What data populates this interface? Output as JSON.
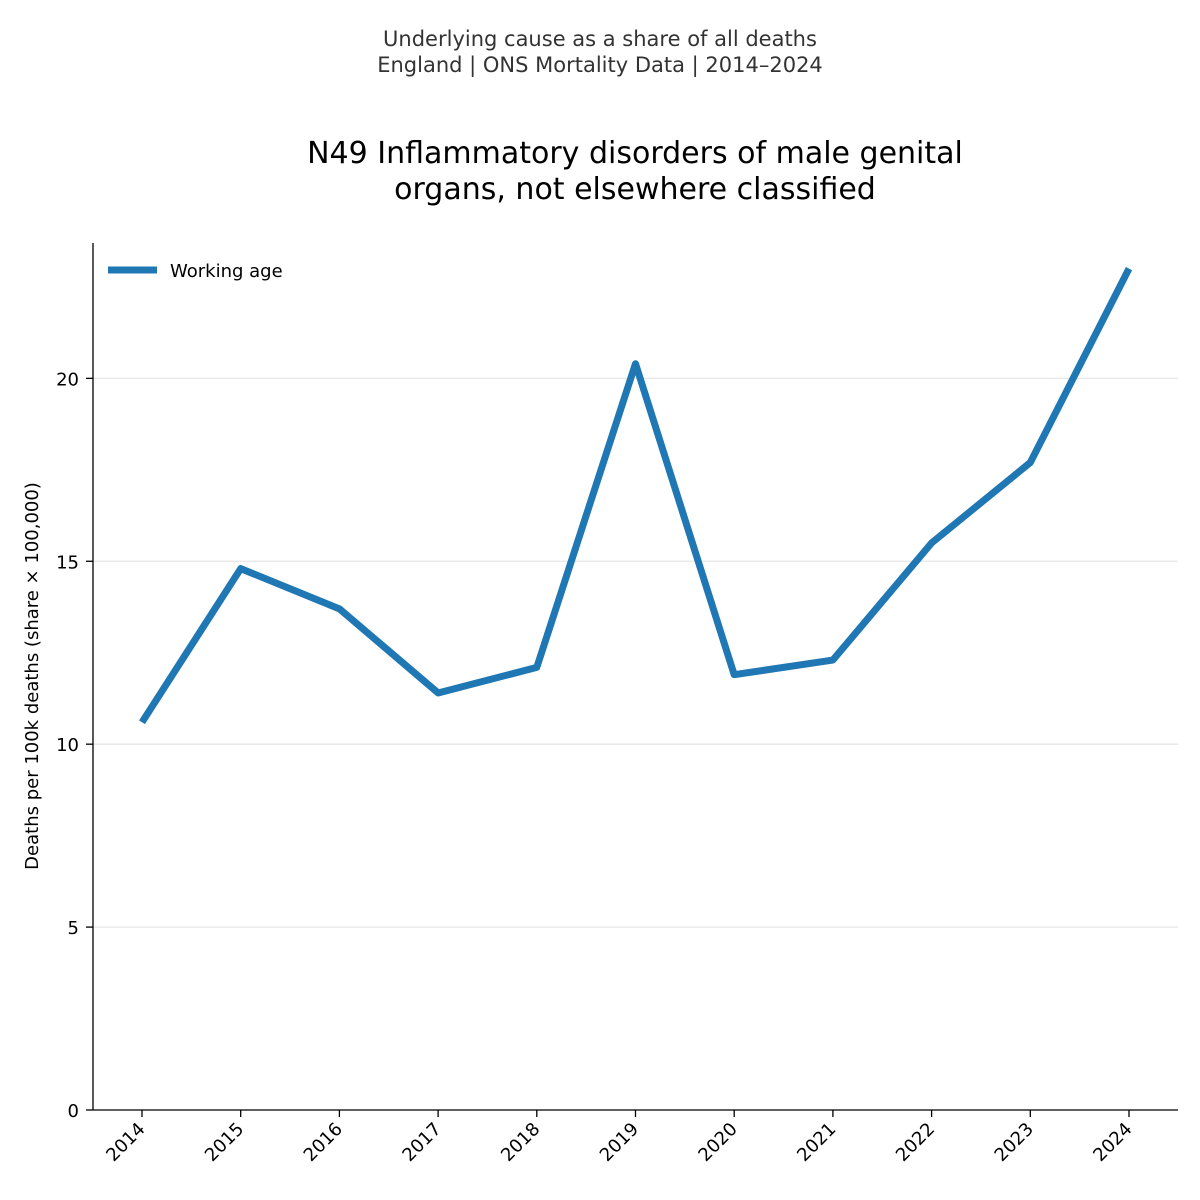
{
  "header": {
    "subtitle_line1": "Underlying cause as a share of all deaths",
    "subtitle_line2": "England | ONS Mortality Data | 2014–2024"
  },
  "chart_data": {
    "type": "line",
    "title_line1": "N49 Inflammatory disorders of male genital",
    "title_line2": "organs, not elsewhere classified",
    "xlabel": "",
    "ylabel": "Deaths per 100k deaths (share × 100,000)",
    "categories": [
      "2014",
      "2015",
      "2016",
      "2017",
      "2018",
      "2019",
      "2020",
      "2021",
      "2022",
      "2023",
      "2024"
    ],
    "series": [
      {
        "name": "Working age",
        "color": "#1f77b4",
        "values": [
          10.6,
          14.8,
          13.7,
          11.4,
          12.1,
          20.4,
          11.9,
          12.3,
          15.5,
          17.7,
          23.0
        ]
      }
    ],
    "yticks": [
      0,
      5,
      10,
      15,
      20
    ],
    "ylim": [
      0,
      23.7
    ],
    "grid": "horizontal",
    "legend": "top-left"
  }
}
